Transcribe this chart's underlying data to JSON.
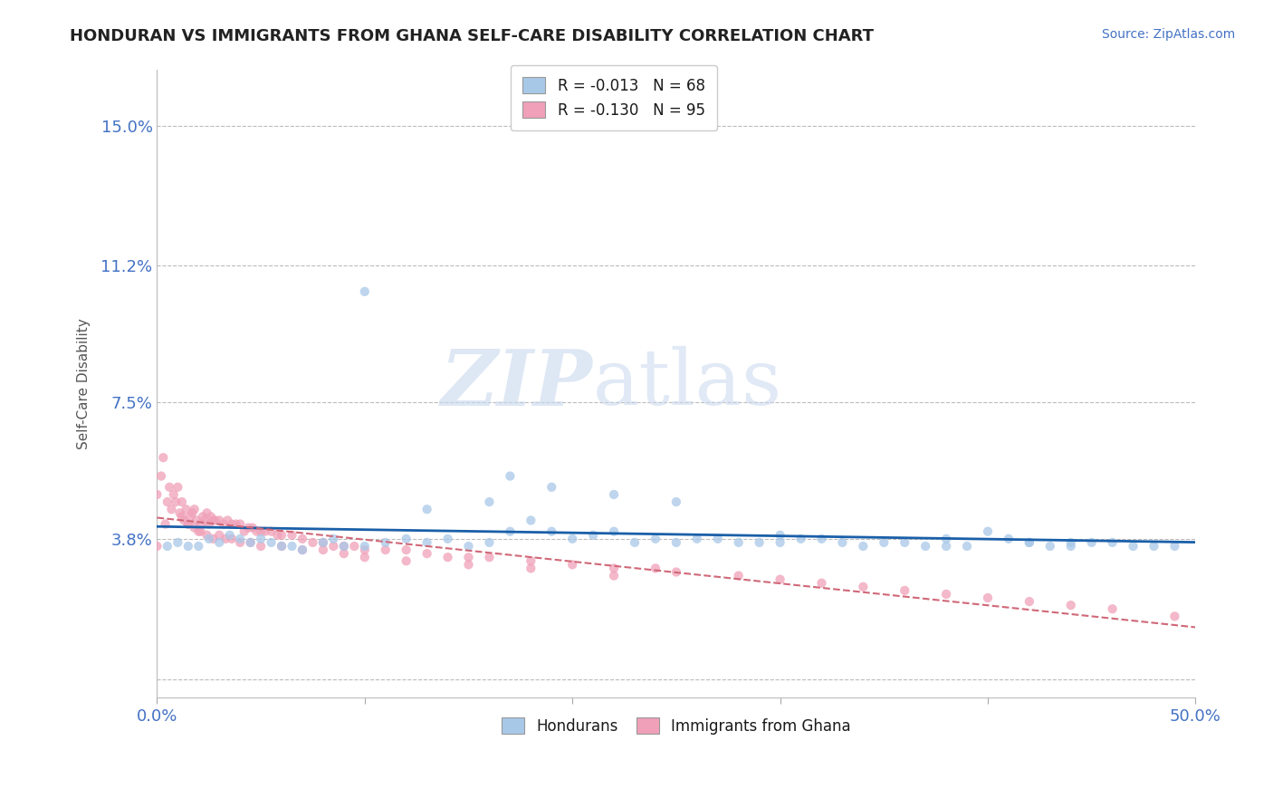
{
  "title": "HONDURAN VS IMMIGRANTS FROM GHANA SELF-CARE DISABILITY CORRELATION CHART",
  "source": "Source: ZipAtlas.com",
  "ylabel": "Self-Care Disability",
  "xlim": [
    0.0,
    0.5
  ],
  "ylim": [
    -0.005,
    0.165
  ],
  "yticks": [
    0.0,
    0.038,
    0.075,
    0.112,
    0.15
  ],
  "ytick_labels": [
    "",
    "3.8%",
    "7.5%",
    "11.2%",
    "15.0%"
  ],
  "xtick_labels": [
    "0.0%",
    "50.0%"
  ],
  "legend_r1": "R = -0.013",
  "legend_n1": "N = 68",
  "legend_r2": "R = -0.130",
  "legend_n2": "N = 95",
  "color_hondurans": "#a8c8e8",
  "color_ghana": "#f0a0b8",
  "color_line_hondurans": "#1a5fa8",
  "color_line_ghana": "#d06878",
  "background_color": "#ffffff",
  "grid_color": "#bbbbbb",
  "watermark_zip": "ZIP",
  "watermark_atlas": "atlas",
  "title_color": "#222222",
  "tick_label_color": "#4472c4",
  "hondurans_x": [
    0.005,
    0.01,
    0.015,
    0.02,
    0.025,
    0.03,
    0.035,
    0.04,
    0.045,
    0.05,
    0.055,
    0.06,
    0.065,
    0.07,
    0.08,
    0.085,
    0.09,
    0.1,
    0.11,
    0.12,
    0.13,
    0.14,
    0.15,
    0.16,
    0.17,
    0.18,
    0.19,
    0.2,
    0.21,
    0.22,
    0.23,
    0.24,
    0.25,
    0.26,
    0.27,
    0.28,
    0.29,
    0.3,
    0.31,
    0.32,
    0.33,
    0.34,
    0.35,
    0.36,
    0.37,
    0.38,
    0.39,
    0.4,
    0.41,
    0.42,
    0.43,
    0.44,
    0.45,
    0.46,
    0.47,
    0.48,
    0.17,
    0.19,
    0.22,
    0.25,
    0.1,
    0.13,
    0.16,
    0.3,
    0.38,
    0.42,
    0.44,
    0.49
  ],
  "hondurans_y": [
    0.036,
    0.037,
    0.036,
    0.036,
    0.038,
    0.037,
    0.039,
    0.038,
    0.037,
    0.038,
    0.037,
    0.036,
    0.036,
    0.035,
    0.037,
    0.038,
    0.036,
    0.036,
    0.037,
    0.038,
    0.037,
    0.038,
    0.036,
    0.037,
    0.04,
    0.043,
    0.04,
    0.038,
    0.039,
    0.04,
    0.037,
    0.038,
    0.037,
    0.038,
    0.038,
    0.037,
    0.037,
    0.037,
    0.038,
    0.038,
    0.037,
    0.036,
    0.037,
    0.037,
    0.036,
    0.036,
    0.036,
    0.04,
    0.038,
    0.037,
    0.036,
    0.036,
    0.037,
    0.037,
    0.036,
    0.036,
    0.055,
    0.052,
    0.05,
    0.048,
    0.105,
    0.046,
    0.048,
    0.039,
    0.038,
    0.037,
    0.037,
    0.036
  ],
  "ghana_x": [
    0.0,
    0.002,
    0.004,
    0.005,
    0.007,
    0.008,
    0.01,
    0.011,
    0.012,
    0.013,
    0.014,
    0.015,
    0.016,
    0.017,
    0.018,
    0.019,
    0.02,
    0.021,
    0.022,
    0.023,
    0.024,
    0.025,
    0.026,
    0.027,
    0.028,
    0.03,
    0.032,
    0.034,
    0.036,
    0.038,
    0.04,
    0.042,
    0.044,
    0.046,
    0.048,
    0.05,
    0.052,
    0.055,
    0.058,
    0.06,
    0.065,
    0.07,
    0.075,
    0.08,
    0.085,
    0.09,
    0.095,
    0.1,
    0.11,
    0.12,
    0.13,
    0.14,
    0.15,
    0.16,
    0.18,
    0.2,
    0.22,
    0.24,
    0.25,
    0.28,
    0.3,
    0.32,
    0.34,
    0.36,
    0.38,
    0.4,
    0.42,
    0.44,
    0.46,
    0.49,
    0.0,
    0.003,
    0.006,
    0.009,
    0.012,
    0.015,
    0.018,
    0.021,
    0.024,
    0.027,
    0.03,
    0.033,
    0.036,
    0.04,
    0.045,
    0.05,
    0.06,
    0.07,
    0.08,
    0.09,
    0.1,
    0.12,
    0.15,
    0.18,
    0.22
  ],
  "ghana_y": [
    0.036,
    0.055,
    0.042,
    0.048,
    0.046,
    0.05,
    0.052,
    0.045,
    0.048,
    0.043,
    0.046,
    0.042,
    0.044,
    0.045,
    0.046,
    0.043,
    0.04,
    0.042,
    0.044,
    0.043,
    0.045,
    0.042,
    0.044,
    0.043,
    0.043,
    0.043,
    0.042,
    0.043,
    0.042,
    0.042,
    0.042,
    0.04,
    0.041,
    0.041,
    0.04,
    0.04,
    0.04,
    0.04,
    0.039,
    0.039,
    0.039,
    0.038,
    0.037,
    0.037,
    0.036,
    0.036,
    0.036,
    0.035,
    0.035,
    0.035,
    0.034,
    0.033,
    0.033,
    0.033,
    0.032,
    0.031,
    0.03,
    0.03,
    0.029,
    0.028,
    0.027,
    0.026,
    0.025,
    0.024,
    0.023,
    0.022,
    0.021,
    0.02,
    0.019,
    0.017,
    0.05,
    0.06,
    0.052,
    0.048,
    0.044,
    0.042,
    0.041,
    0.04,
    0.039,
    0.038,
    0.039,
    0.038,
    0.038,
    0.037,
    0.037,
    0.036,
    0.036,
    0.035,
    0.035,
    0.034,
    0.033,
    0.032,
    0.031,
    0.03,
    0.028
  ]
}
